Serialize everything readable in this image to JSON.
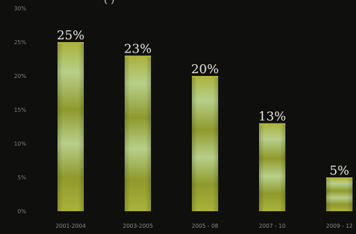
{
  "chart_data": {
    "type": "bar",
    "title_fragment": "(                     )",
    "categories": [
      "2001-2004",
      "2003-2005",
      "2005 - 08",
      "2007 - 10",
      "2009 - 12"
    ],
    "values": [
      25,
      23,
      20,
      13,
      5
    ],
    "data_labels": [
      "25%",
      "23%",
      "20%",
      "13%",
      "5%"
    ],
    "yticks": [
      "0%",
      "5%",
      "10%",
      "15%",
      "20%",
      "25%",
      "30%"
    ],
    "ylim": [
      0,
      30
    ],
    "grid": false,
    "bar_colors": {
      "edge": "#b5b33a",
      "light": "#b8cf8a",
      "mid": "#a9b23b",
      "dark": "#8f9a2c"
    },
    "background": "#0f100d"
  }
}
